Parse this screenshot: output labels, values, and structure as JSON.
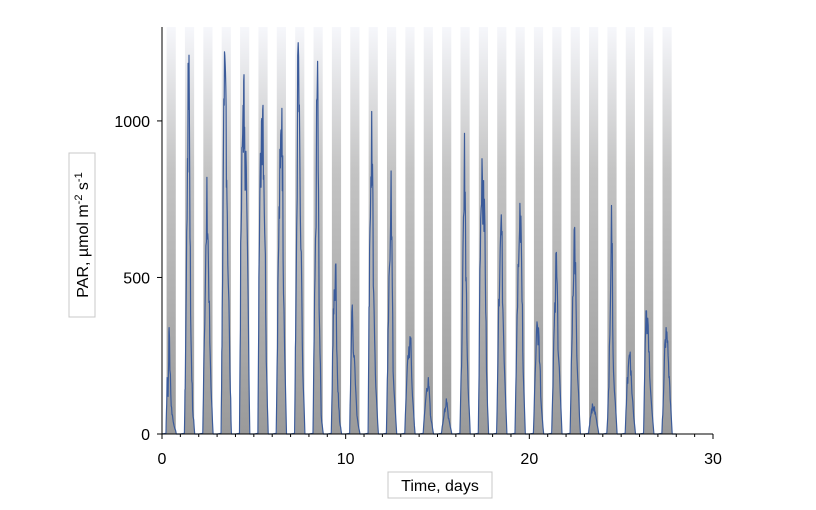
{
  "chart_data": {
    "type": "line",
    "xlabel": "Time, days",
    "ylabel_main": "PAR, µmol m",
    "ylabel_sup1": "-2",
    "ylabel_mid": " s",
    "ylabel_sup2": "-1",
    "xlim": [
      0,
      30
    ],
    "ylim": [
      0,
      1300
    ],
    "xticks": [
      0,
      10,
      20,
      30
    ],
    "yticks": [
      0,
      500,
      1000
    ],
    "night_shading": true,
    "grid": false,
    "series": [
      {
        "color": "#3b5b9a",
        "days": [
          {
            "peaks": [
              [
                0.1,
                180
              ],
              [
                0.2,
                120
              ],
              [
                0.3,
                340
              ],
              [
                0.5,
                90
              ],
              [
                0.7,
                40
              ]
            ]
          },
          {
            "peaks": [
              [
                0.1,
                200
              ],
              [
                0.3,
                880
              ],
              [
                0.45,
                1210
              ],
              [
                0.6,
                380
              ],
              [
                0.8,
                80
              ]
            ]
          },
          {
            "peaks": [
              [
                0.15,
                300
              ],
              [
                0.4,
                820
              ],
              [
                0.6,
                420
              ],
              [
                0.8,
                150
              ]
            ]
          },
          {
            "peaks": [
              [
                0.1,
                400
              ],
              [
                0.3,
                1050
              ],
              [
                0.45,
                1110
              ],
              [
                0.6,
                700
              ],
              [
                0.85,
                200
              ]
            ]
          },
          {
            "peaks": [
              [
                0.15,
                650
              ],
              [
                0.35,
                1050
              ],
              [
                0.5,
                980
              ],
              [
                0.7,
                750
              ]
            ]
          },
          {
            "peaks": [
              [
                0.1,
                500
              ],
              [
                0.35,
                1000
              ],
              [
                0.5,
                1050
              ],
              [
                0.7,
                600
              ],
              [
                0.85,
                200
              ]
            ]
          },
          {
            "peaks": [
              [
                0.2,
                550
              ],
              [
                0.4,
                850
              ],
              [
                0.55,
                1040
              ],
              [
                0.75,
                400
              ]
            ]
          },
          {
            "peaks": [
              [
                0.1,
                300
              ],
              [
                0.35,
                1250
              ],
              [
                0.55,
                700
              ],
              [
                0.8,
                200
              ]
            ]
          },
          {
            "peaks": [
              [
                0.2,
                500
              ],
              [
                0.45,
                1190
              ],
              [
                0.6,
                400
              ],
              [
                0.8,
                60
              ]
            ]
          },
          {
            "peaks": [
              [
                0.2,
                400
              ],
              [
                0.4,
                540
              ],
              [
                0.6,
                180
              ],
              [
                0.8,
                40
              ]
            ]
          },
          {
            "peaks": [
              [
                0.2,
                390
              ],
              [
                0.45,
                250
              ],
              [
                0.7,
                60
              ]
            ]
          },
          {
            "peaks": [
              [
                0.15,
                590
              ],
              [
                0.35,
                1030
              ],
              [
                0.55,
                450
              ],
              [
                0.75,
                150
              ]
            ]
          },
          {
            "peaks": [
              [
                0.2,
                360
              ],
              [
                0.45,
                840
              ],
              [
                0.65,
                200
              ]
            ]
          },
          {
            "peaks": [
              [
                0.3,
                250
              ],
              [
                0.55,
                300
              ],
              [
                0.75,
                120
              ]
            ]
          },
          {
            "peaks": [
              [
                0.3,
                130
              ],
              [
                0.5,
                180
              ],
              [
                0.7,
                60
              ]
            ]
          },
          {
            "peaks": [
              [
                0.3,
                80
              ],
              [
                0.5,
                100
              ],
              [
                0.7,
                50
              ]
            ]
          },
          {
            "peaks": [
              [
                0.2,
                300
              ],
              [
                0.45,
                960
              ],
              [
                0.6,
                500
              ],
              [
                0.8,
                150
              ]
            ]
          },
          {
            "peaks": [
              [
                0.2,
                560
              ],
              [
                0.4,
                820
              ],
              [
                0.6,
                750
              ],
              [
                0.8,
                200
              ]
            ]
          },
          {
            "peaks": [
              [
                0.2,
                430
              ],
              [
                0.45,
                700
              ],
              [
                0.65,
                350
              ]
            ]
          },
          {
            "peaks": [
              [
                0.2,
                380
              ],
              [
                0.45,
                650
              ],
              [
                0.6,
                640
              ],
              [
                0.8,
                200
              ]
            ]
          },
          {
            "peaks": [
              [
                0.3,
                330
              ],
              [
                0.55,
                310
              ],
              [
                0.75,
                100
              ]
            ]
          },
          {
            "peaks": [
              [
                0.2,
                300
              ],
              [
                0.45,
                580
              ],
              [
                0.65,
                250
              ]
            ]
          },
          {
            "peaks": [
              [
                0.2,
                320
              ],
              [
                0.45,
                660
              ],
              [
                0.65,
                250
              ]
            ]
          },
          {
            "peaks": [
              [
                0.3,
                80
              ],
              [
                0.5,
                85
              ],
              [
                0.7,
                60
              ]
            ]
          },
          {
            "peaks": [
              [
                0.2,
                150
              ],
              [
                0.45,
                730
              ],
              [
                0.65,
                200
              ]
            ]
          },
          {
            "peaks": [
              [
                0.2,
                180
              ],
              [
                0.45,
                250
              ],
              [
                0.65,
                130
              ]
            ]
          },
          {
            "peaks": [
              [
                0.2,
                330
              ],
              [
                0.4,
                370
              ],
              [
                0.65,
                150
              ]
            ]
          },
          {
            "peaks": [
              [
                0.2,
                180
              ],
              [
                0.4,
                340
              ],
              [
                0.6,
                250
              ],
              [
                0.8,
                110
              ]
            ]
          }
        ]
      }
    ]
  }
}
